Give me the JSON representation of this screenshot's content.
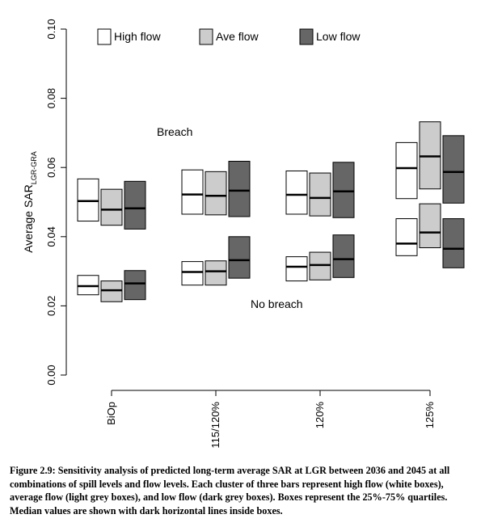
{
  "chart_data": {
    "type": "box",
    "categories": [
      "BiOp",
      "115/120%",
      "120%",
      "125%"
    ],
    "y_ticks": [
      "0.00",
      "0.02",
      "0.04",
      "0.06",
      "0.08",
      "0.10"
    ],
    "ylim": [
      0,
      0.1
    ],
    "ylabel_main": "Average SAR",
    "ylabel_sub": "LGR-GRA",
    "xlabel": "",
    "legend": {
      "placement": "top",
      "entries": [
        {
          "label": "High flow",
          "color": "#ffffff"
        },
        {
          "label": "Ave flow",
          "color": "#cccccc"
        },
        {
          "label": "Low flow",
          "color": "#666666"
        }
      ]
    },
    "annotations": {
      "breach": "Breach",
      "no_breach": "No breach"
    },
    "groups": [
      {
        "scenario": "Breach",
        "series": [
          {
            "flow": "High flow",
            "boxes": [
              [
                0.0445,
                0.0503,
                0.0567
              ],
              [
                0.0465,
                0.0522,
                0.0593
              ],
              [
                0.0465,
                0.0521,
                0.059
              ],
              [
                0.051,
                0.0598,
                0.0672
              ]
            ]
          },
          {
            "flow": "Ave flow",
            "boxes": [
              [
                0.0433,
                0.0478,
                0.0537
              ],
              [
                0.0463,
                0.0518,
                0.0588
              ],
              [
                0.046,
                0.0512,
                0.0584
              ],
              [
                0.0538,
                0.0632,
                0.0732
              ]
            ]
          },
          {
            "flow": "Low flow",
            "boxes": [
              [
                0.0422,
                0.0482,
                0.056
              ],
              [
                0.0458,
                0.0533,
                0.0618
              ],
              [
                0.0455,
                0.0531,
                0.0615
              ],
              [
                0.0497,
                0.0587,
                0.0692
              ]
            ]
          }
        ]
      },
      {
        "scenario": "No breach",
        "series": [
          {
            "flow": "High flow",
            "boxes": [
              [
                0.0232,
                0.0257,
                0.0288
              ],
              [
                0.026,
                0.0298,
                0.0328
              ],
              [
                0.0272,
                0.0313,
                0.0342
              ],
              [
                0.0345,
                0.038,
                0.0452
              ]
            ]
          },
          {
            "flow": "Ave flow",
            "boxes": [
              [
                0.0212,
                0.0245,
                0.0272
              ],
              [
                0.026,
                0.03,
                0.033
              ],
              [
                0.0275,
                0.0318,
                0.0355
              ],
              [
                0.0368,
                0.0412,
                0.0495
              ]
            ]
          },
          {
            "flow": "Low flow",
            "boxes": [
              [
                0.0218,
                0.0265,
                0.0302
              ],
              [
                0.028,
                0.0332,
                0.04
              ],
              [
                0.0282,
                0.0335,
                0.0405
              ],
              [
                0.031,
                0.0365,
                0.0452
              ]
            ]
          }
        ]
      }
    ]
  },
  "caption": "Figure 2.9: Sensitivity analysis of predicted long-term average SAR at LGR between 2036 and 2045 at all combinations of spill levels and flow levels. Each cluster of three bars represent high flow (white boxes), average flow (light grey boxes), and low flow (dark grey boxes). Boxes represent the 25%-75% quartiles. Median values are shown with dark horizontal lines inside boxes."
}
